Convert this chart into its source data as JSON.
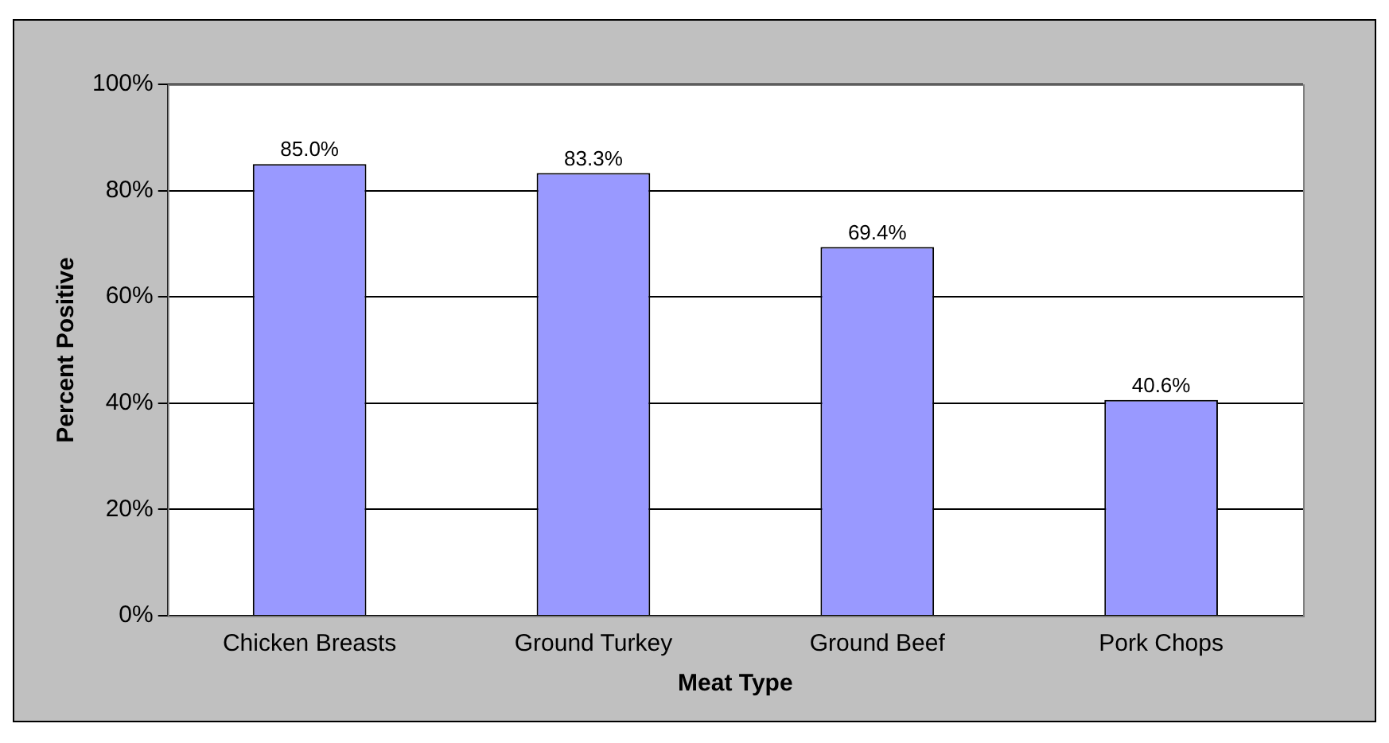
{
  "chart_data": {
    "type": "bar",
    "xlabel": "Meat Type",
    "ylabel": "Percent Positive",
    "categories": [
      "Chicken Breasts",
      "Ground Turkey",
      "Ground Beef",
      "Pork Chops"
    ],
    "values": [
      85.0,
      83.3,
      69.4,
      40.6
    ],
    "color": "#9999ff",
    "value_labels": [
      "85.0%",
      "83.3%",
      "69.4%",
      "40.6%"
    ],
    "ylim": [
      0,
      100
    ],
    "yticks": [
      {
        "value": 0,
        "label": "0%"
      },
      {
        "value": 20,
        "label": "20%"
      },
      {
        "value": 40,
        "label": "40%"
      },
      {
        "value": 60,
        "label": "60%"
      },
      {
        "value": 80,
        "label": "80%"
      },
      {
        "value": 100,
        "label": "100%"
      }
    ],
    "grid": "y",
    "legend": false
  }
}
